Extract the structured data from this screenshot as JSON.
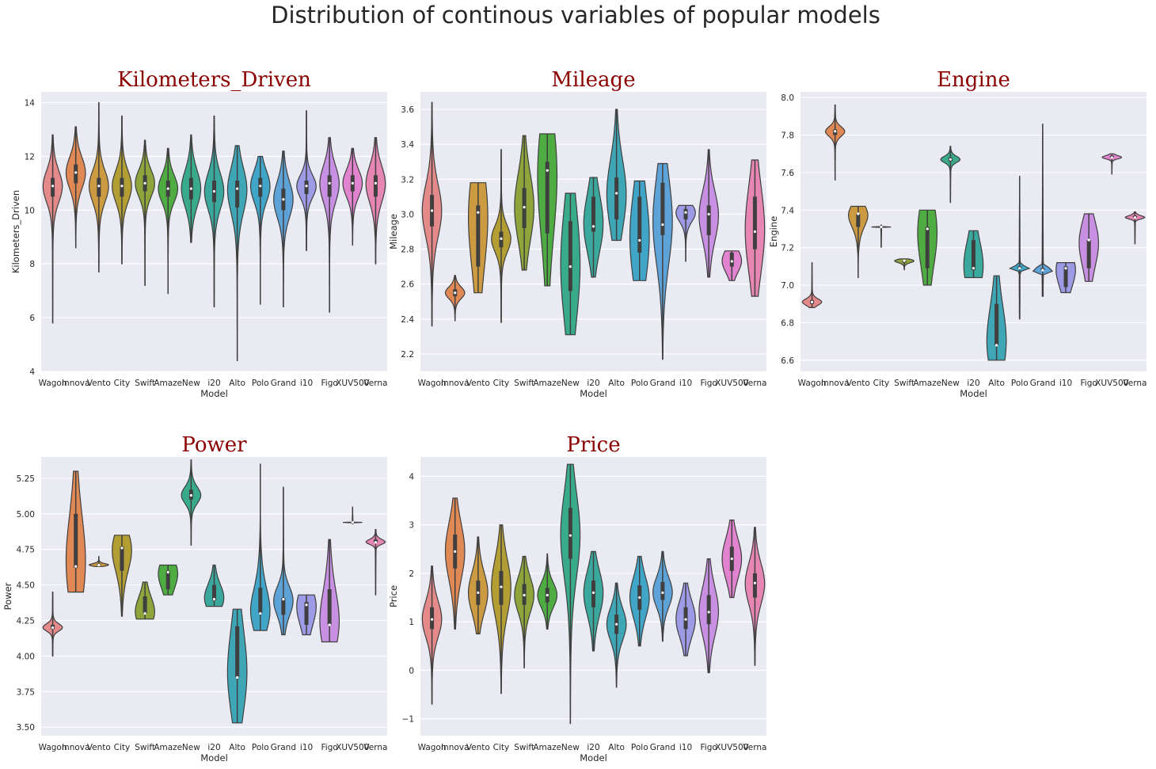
{
  "figure_title": "Distribution of continous variables of popular models",
  "colors": {
    "title_red": "#8b0000",
    "background": "#eaeaf2",
    "palette": [
      "#e58a8b",
      "#e08955",
      "#cc9a40",
      "#b39e33",
      "#8fa43a",
      "#4fac43",
      "#3aab8a",
      "#3ba89e",
      "#3ea6b5",
      "#41a5c8",
      "#5ea3d8",
      "#9d9be5",
      "#c890e2",
      "#e283cf",
      "#e686b2"
    ]
  },
  "chart_data": [
    {
      "type": "violin",
      "title": "Kilometers_Driven",
      "xlabel": "Model",
      "ylabel": "Kilometers_Driven",
      "categories": [
        "Wagon",
        "Innova",
        "Vento",
        "City",
        "Swift",
        "Amaze",
        "New",
        "i20",
        "Alto",
        "Polo",
        "Grand",
        "i10",
        "Figo",
        "XUV500",
        "Verna"
      ],
      "ylim": [
        4,
        14.4
      ],
      "yticks": [
        4,
        6,
        8,
        10,
        12,
        14
      ],
      "grid": true,
      "stats": [
        {
          "min": 5.8,
          "q1": 10.5,
          "median": 10.9,
          "q3": 11.2,
          "max": 12.8
        },
        {
          "min": 8.6,
          "q1": 11.0,
          "median": 11.4,
          "q3": 11.7,
          "max": 13.1
        },
        {
          "min": 7.7,
          "q1": 10.5,
          "median": 10.9,
          "q3": 11.2,
          "max": 14.0
        },
        {
          "min": 8.0,
          "q1": 10.5,
          "median": 10.9,
          "q3": 11.2,
          "max": 13.5
        },
        {
          "min": 7.2,
          "q1": 10.7,
          "median": 11.0,
          "q3": 11.3,
          "max": 12.6
        },
        {
          "min": 6.9,
          "q1": 10.5,
          "median": 10.8,
          "q3": 11.1,
          "max": 12.3
        },
        {
          "min": 8.8,
          "q1": 10.4,
          "median": 10.8,
          "q3": 11.2,
          "max": 12.8
        },
        {
          "min": 6.4,
          "q1": 10.3,
          "median": 10.7,
          "q3": 11.1,
          "max": 13.5
        },
        {
          "min": 4.4,
          "q1": 10.1,
          "median": 10.8,
          "q3": 11.1,
          "max": 12.4
        },
        {
          "min": 6.5,
          "q1": 10.5,
          "median": 10.9,
          "q3": 11.2,
          "max": 12.0
        },
        {
          "min": 6.4,
          "q1": 10.0,
          "median": 10.4,
          "q3": 10.8,
          "max": 12.2
        },
        {
          "min": 8.5,
          "q1": 10.6,
          "median": 10.9,
          "q3": 11.1,
          "max": 13.7
        },
        {
          "min": 6.2,
          "q1": 10.5,
          "median": 11.0,
          "q3": 11.3,
          "max": 12.7
        },
        {
          "min": 8.7,
          "q1": 10.7,
          "median": 11.0,
          "q3": 11.3,
          "max": 12.3
        },
        {
          "min": 8.0,
          "q1": 10.5,
          "median": 11.0,
          "q3": 11.3,
          "max": 12.7
        }
      ]
    },
    {
      "type": "violin",
      "title": "Mileage",
      "xlabel": "Model",
      "ylabel": "Mileage",
      "categories": [
        "Wagon",
        "Innova",
        "Vento",
        "City",
        "Swift",
        "Amaze",
        "New",
        "i20",
        "Alto",
        "Polo",
        "Grand",
        "i10",
        "Figo",
        "XUV500",
        "Verna"
      ],
      "ylim": [
        2.1,
        3.7
      ],
      "yticks": [
        2.2,
        2.4,
        2.6,
        2.8,
        3.0,
        3.2,
        3.4,
        3.6
      ],
      "grid": true,
      "stats": [
        {
          "min": 2.36,
          "q1": 2.93,
          "median": 3.02,
          "q3": 3.11,
          "max": 3.64
        },
        {
          "min": 2.39,
          "q1": 2.53,
          "median": 2.55,
          "q3": 2.57,
          "max": 2.65
        },
        {
          "min": 2.55,
          "q1": 2.7,
          "median": 3.01,
          "q3": 3.05,
          "max": 3.18
        },
        {
          "min": 2.38,
          "q1": 2.81,
          "median": 2.86,
          "q3": 2.9,
          "max": 3.37
        },
        {
          "min": 2.68,
          "q1": 2.92,
          "median": 3.04,
          "q3": 3.15,
          "max": 3.45
        },
        {
          "min": 2.59,
          "q1": 2.89,
          "median": 3.25,
          "q3": 3.3,
          "max": 3.46
        },
        {
          "min": 2.31,
          "q1": 2.56,
          "median": 2.7,
          "q3": 2.96,
          "max": 3.12
        },
        {
          "min": 2.64,
          "q1": 2.9,
          "median": 2.93,
          "q3": 3.1,
          "max": 3.21
        },
        {
          "min": 2.85,
          "q1": 2.97,
          "median": 3.12,
          "q3": 3.21,
          "max": 3.6
        },
        {
          "min": 2.62,
          "q1": 2.78,
          "median": 2.85,
          "q3": 3.1,
          "max": 3.19
        },
        {
          "min": 2.17,
          "q1": 2.88,
          "median": 2.94,
          "q3": 3.18,
          "max": 3.29
        },
        {
          "min": 2.73,
          "q1": 2.97,
          "median": 3.01,
          "q3": 3.03,
          "max": 3.05
        },
        {
          "min": 2.64,
          "q1": 2.88,
          "median": 3.0,
          "q3": 3.05,
          "max": 3.37
        },
        {
          "min": 2.62,
          "q1": 2.7,
          "median": 2.73,
          "q3": 2.78,
          "max": 2.79
        },
        {
          "min": 2.53,
          "q1": 2.8,
          "median": 2.9,
          "q3": 3.1,
          "max": 3.31
        }
      ]
    },
    {
      "type": "violin",
      "title": "Engine",
      "xlabel": "Model",
      "ylabel": "Engine",
      "categories": [
        "Wagon",
        "Innova",
        "Vento",
        "City",
        "Swift",
        "Amaze",
        "New",
        "i20",
        "Alto",
        "Polo",
        "Grand",
        "i10",
        "Figo",
        "XUV500",
        "Verna"
      ],
      "ylim": [
        6.54,
        8.03
      ],
      "yticks": [
        6.6,
        6.8,
        7.0,
        7.2,
        7.4,
        7.6,
        7.8,
        8.0
      ],
      "grid": true,
      "stats": [
        {
          "min": 6.88,
          "q1": 6.9,
          "median": 6.91,
          "q3": 6.92,
          "max": 7.12
        },
        {
          "min": 7.56,
          "q1": 7.8,
          "median": 7.82,
          "q3": 7.83,
          "max": 7.96
        },
        {
          "min": 7.04,
          "q1": 7.31,
          "median": 7.38,
          "q3": 7.38,
          "max": 7.42
        },
        {
          "min": 7.2,
          "q1": 7.31,
          "median": 7.31,
          "q3": 7.31,
          "max": 7.32
        },
        {
          "min": 7.08,
          "q1": 7.12,
          "median": 7.13,
          "q3": 7.13,
          "max": 7.14
        },
        {
          "min": 7.0,
          "q1": 7.09,
          "median": 7.3,
          "q3": 7.31,
          "max": 7.4
        },
        {
          "min": 7.44,
          "q1": 7.66,
          "median": 7.67,
          "q3": 7.68,
          "max": 7.74
        },
        {
          "min": 7.04,
          "q1": 7.08,
          "median": 7.09,
          "q3": 7.24,
          "max": 7.29
        },
        {
          "min": 6.6,
          "q1": 6.68,
          "median": 6.68,
          "q3": 6.9,
          "max": 7.05
        },
        {
          "min": 6.82,
          "q1": 7.09,
          "median": 7.09,
          "q3": 7.1,
          "max": 7.58
        },
        {
          "min": 6.94,
          "q1": 7.08,
          "median": 7.08,
          "q3": 7.09,
          "max": 7.86
        },
        {
          "min": 6.96,
          "q1": 6.99,
          "median": 7.09,
          "q3": 7.1,
          "max": 7.12
        },
        {
          "min": 7.02,
          "q1": 7.09,
          "median": 7.24,
          "q3": 7.24,
          "max": 7.38
        },
        {
          "min": 7.59,
          "q1": 7.68,
          "median": 7.68,
          "q3": 7.69,
          "max": 7.7
        },
        {
          "min": 7.22,
          "q1": 7.36,
          "median": 7.36,
          "q3": 7.37,
          "max": 7.39
        }
      ]
    },
    {
      "type": "violin",
      "title": "Power",
      "xlabel": "Model",
      "ylabel": "Power",
      "categories": [
        "Wagon",
        "Innova",
        "Vento",
        "City",
        "Swift",
        "Amaze",
        "New",
        "i20",
        "Alto",
        "Polo",
        "Grand",
        "i10",
        "Figo",
        "XUV500",
        "Verna"
      ],
      "ylim": [
        3.44,
        5.4
      ],
      "yticks": [
        3.5,
        3.75,
        4.0,
        4.25,
        4.5,
        4.75,
        5.0,
        5.25
      ],
      "grid": true,
      "stats": [
        {
          "min": 4.0,
          "q1": 4.19,
          "median": 4.2,
          "q3": 4.22,
          "max": 4.45
        },
        {
          "min": 4.45,
          "q1": 4.62,
          "median": 4.63,
          "q3": 5.0,
          "max": 5.3
        },
        {
          "min": 4.63,
          "q1": 4.64,
          "median": 4.64,
          "q3": 4.65,
          "max": 4.7
        },
        {
          "min": 4.28,
          "q1": 4.6,
          "median": 4.76,
          "q3": 4.77,
          "max": 4.85
        },
        {
          "min": 4.26,
          "q1": 4.3,
          "median": 4.3,
          "q3": 4.42,
          "max": 4.52
        },
        {
          "min": 4.43,
          "q1": 4.47,
          "median": 4.59,
          "q3": 4.6,
          "max": 4.64
        },
        {
          "min": 4.78,
          "q1": 5.1,
          "median": 5.13,
          "q3": 5.17,
          "max": 5.38
        },
        {
          "min": 4.35,
          "q1": 4.39,
          "median": 4.4,
          "q3": 4.5,
          "max": 4.64
        },
        {
          "min": 3.53,
          "q1": 3.85,
          "median": 3.85,
          "q3": 4.21,
          "max": 4.33
        },
        {
          "min": 4.18,
          "q1": 4.3,
          "median": 4.3,
          "q3": 4.48,
          "max": 5.35
        },
        {
          "min": 4.15,
          "q1": 4.29,
          "median": 4.4,
          "q3": 4.41,
          "max": 5.19
        },
        {
          "min": 4.15,
          "q1": 4.22,
          "median": 4.36,
          "q3": 4.38,
          "max": 4.43
        },
        {
          "min": 4.1,
          "q1": 4.22,
          "median": 4.22,
          "q3": 4.47,
          "max": 4.82
        },
        {
          "min": 4.93,
          "q1": 4.94,
          "median": 4.94,
          "q3": 4.94,
          "max": 5.05
        },
        {
          "min": 4.43,
          "q1": 4.8,
          "median": 4.8,
          "q3": 4.82,
          "max": 4.89
        }
      ]
    },
    {
      "type": "violin",
      "title": "Price",
      "xlabel": "Model",
      "ylabel": "Price",
      "categories": [
        "Wagon",
        "Innova",
        "Vento",
        "City",
        "Swift",
        "Amaze",
        "New",
        "i20",
        "Alto",
        "Polo",
        "Grand",
        "i10",
        "Figo",
        "XUV500",
        "Verna"
      ],
      "ylim": [
        -1.35,
        4.4
      ],
      "yticks": [
        -1,
        0,
        1,
        2,
        3,
        4
      ],
      "grid": true,
      "stats": [
        {
          "min": -0.7,
          "q1": 0.85,
          "median": 1.05,
          "q3": 1.3,
          "max": 2.15
        },
        {
          "min": 0.85,
          "q1": 2.1,
          "median": 2.45,
          "q3": 2.8,
          "max": 3.55
        },
        {
          "min": 0.75,
          "q1": 1.35,
          "median": 1.6,
          "q3": 1.85,
          "max": 2.75
        },
        {
          "min": -0.48,
          "q1": 1.35,
          "median": 1.72,
          "q3": 2.05,
          "max": 3.0
        },
        {
          "min": 0.05,
          "q1": 1.35,
          "median": 1.55,
          "q3": 1.78,
          "max": 2.35
        },
        {
          "min": 0.85,
          "q1": 1.4,
          "median": 1.55,
          "q3": 1.7,
          "max": 2.4
        },
        {
          "min": -1.1,
          "q1": 2.3,
          "median": 2.78,
          "q3": 3.35,
          "max": 4.25
        },
        {
          "min": 0.4,
          "q1": 1.3,
          "median": 1.6,
          "q3": 1.85,
          "max": 2.45
        },
        {
          "min": -0.35,
          "q1": 0.75,
          "median": 0.95,
          "q3": 1.15,
          "max": 1.8
        },
        {
          "min": 0.5,
          "q1": 1.25,
          "median": 1.5,
          "q3": 1.75,
          "max": 2.35
        },
        {
          "min": 0.6,
          "q1": 1.45,
          "median": 1.6,
          "q3": 1.82,
          "max": 2.45
        },
        {
          "min": 0.3,
          "q1": 0.85,
          "median": 1.05,
          "q3": 1.3,
          "max": 1.8
        },
        {
          "min": -0.05,
          "q1": 0.95,
          "median": 1.2,
          "q3": 1.55,
          "max": 2.3
        },
        {
          "min": 1.5,
          "q1": 2.05,
          "median": 2.3,
          "q3": 2.55,
          "max": 3.1
        },
        {
          "min": 0.1,
          "q1": 1.5,
          "median": 1.8,
          "q3": 2.0,
          "max": 2.95
        }
      ]
    }
  ]
}
